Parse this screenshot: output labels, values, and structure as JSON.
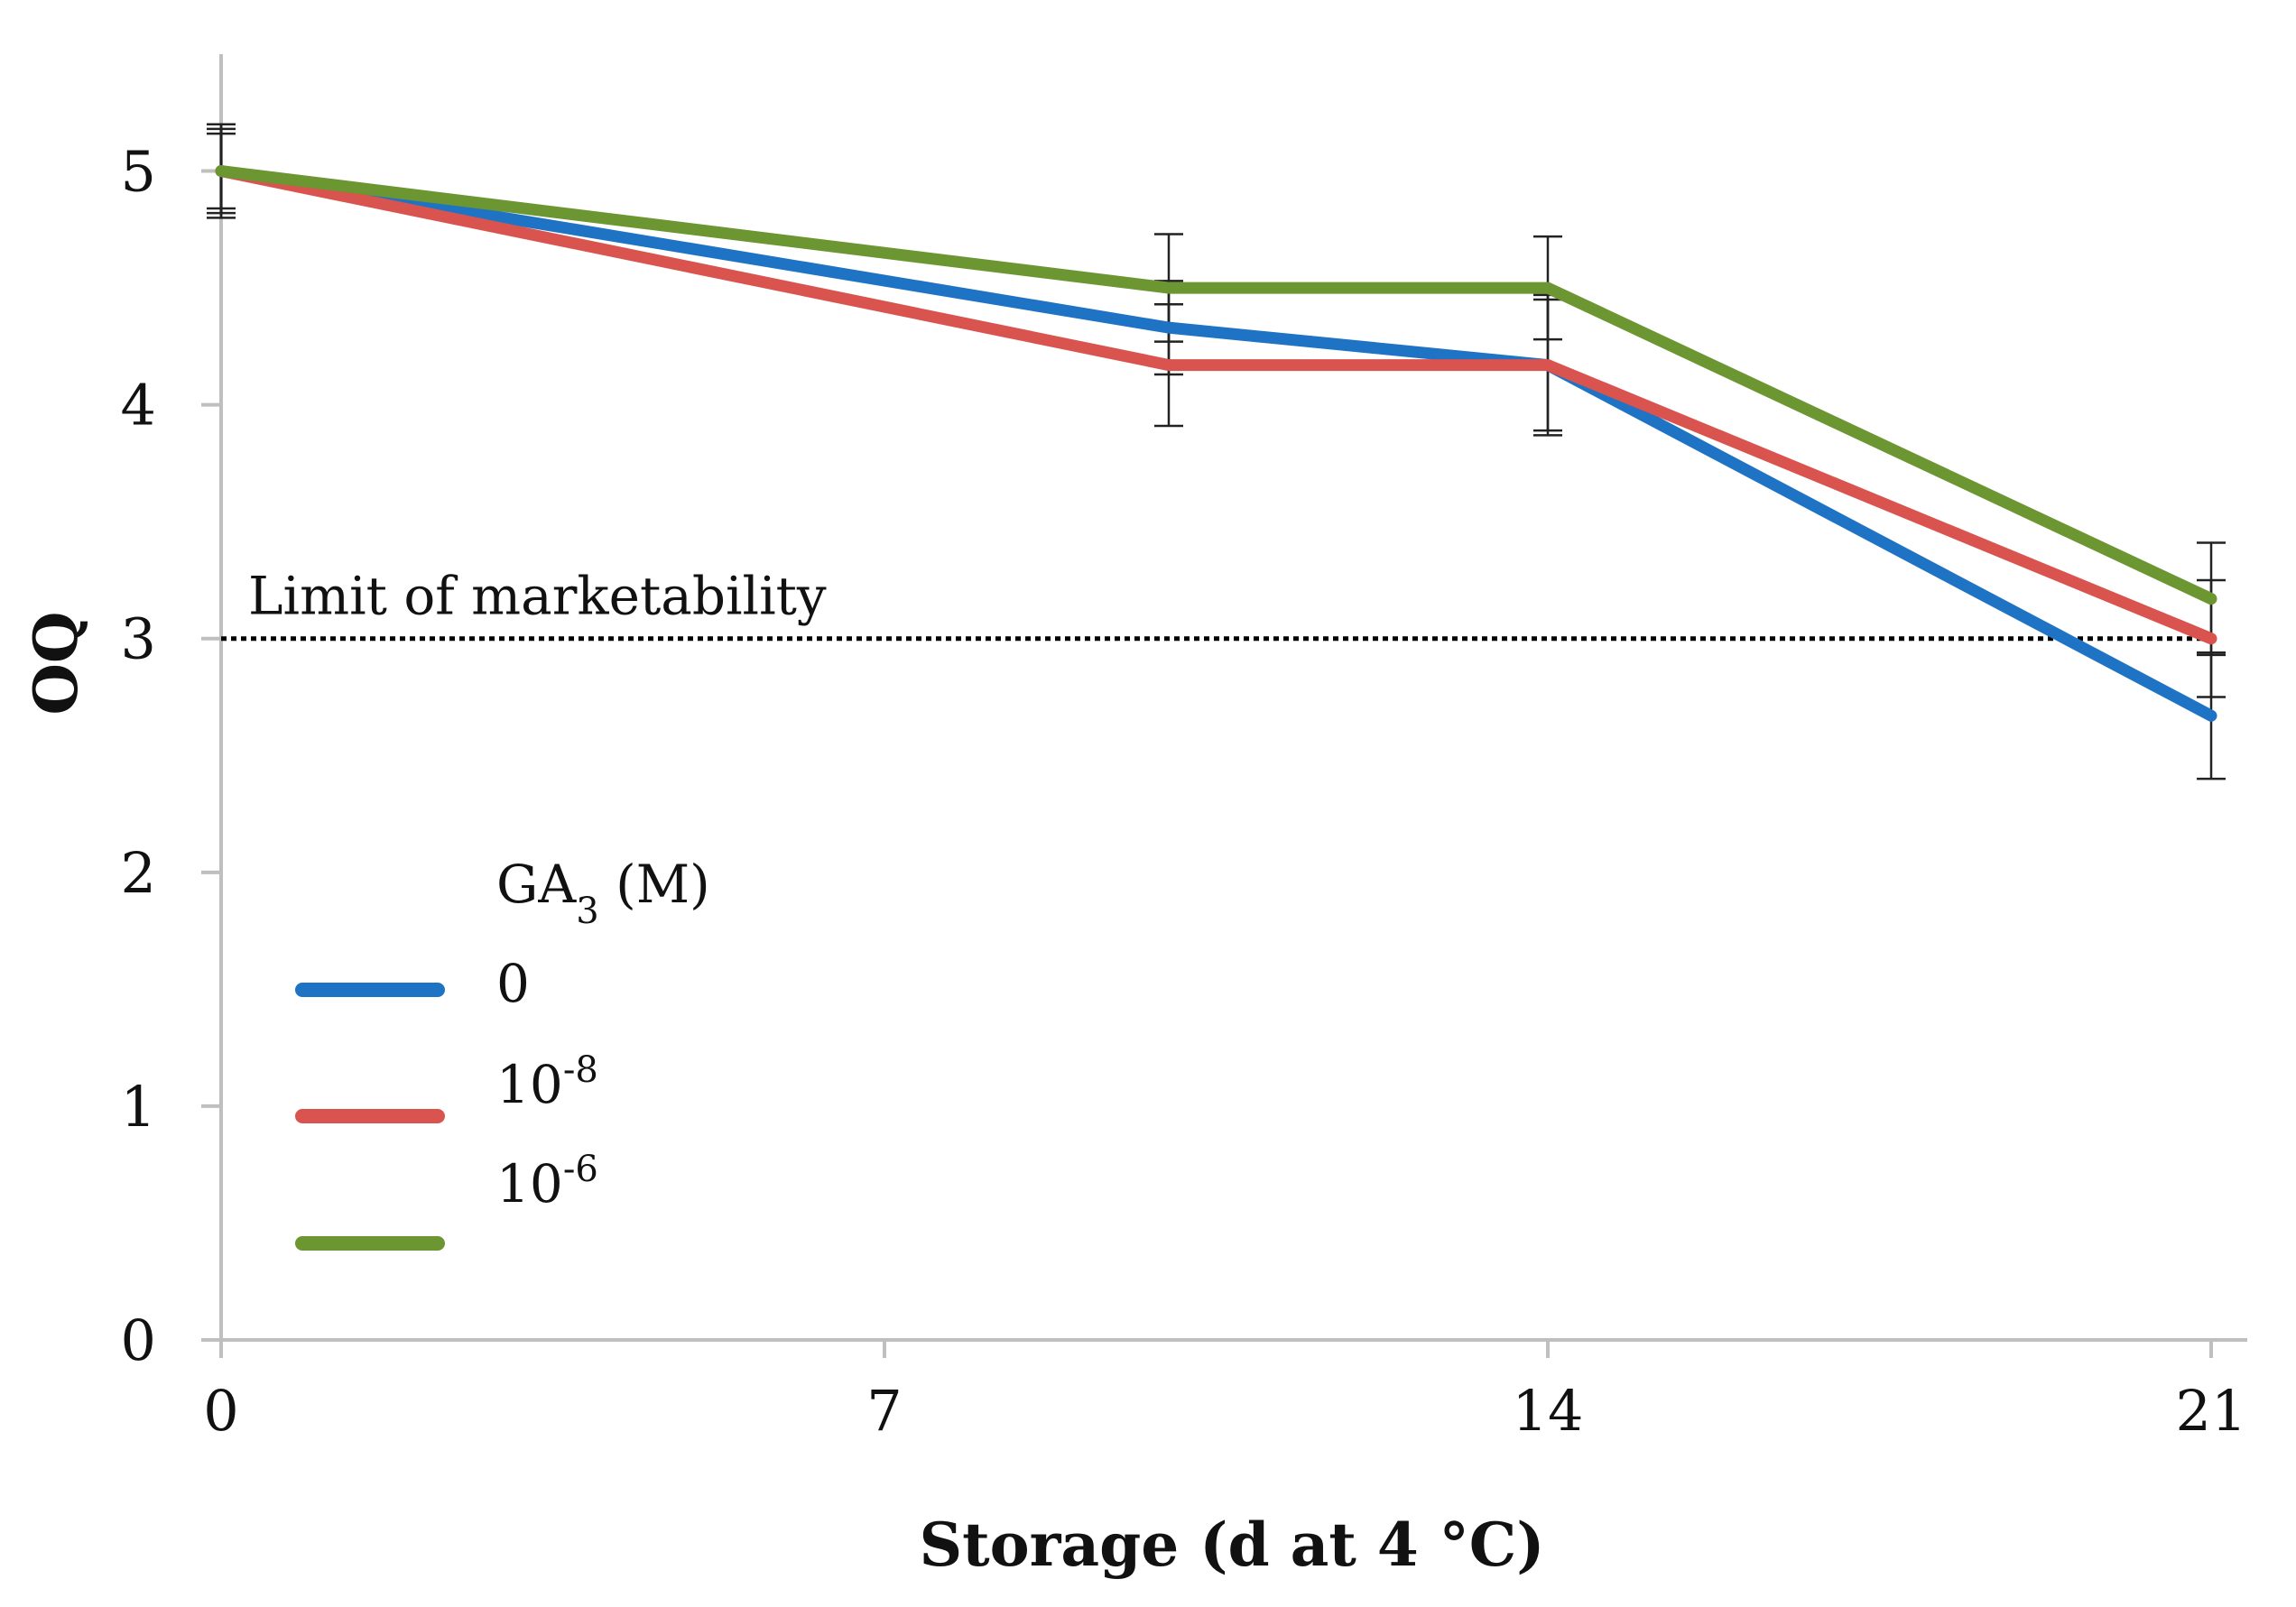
{
  "chart_data": {
    "type": "line",
    "xlabel": "Storage (d at 4 °C)",
    "ylabel": "OQ",
    "xlim": [
      0,
      21
    ],
    "ylim": [
      0,
      5.5
    ],
    "xticks": [
      "0",
      "7",
      "14",
      "21"
    ],
    "xtick_values": [
      0,
      7,
      14,
      21
    ],
    "yticks": [
      "0",
      "1",
      "2",
      "3",
      "4",
      "5"
    ],
    "ytick_values": [
      0,
      1,
      2,
      3,
      4,
      5
    ],
    "x": [
      0,
      10,
      14,
      21
    ],
    "series": [
      {
        "name": "0",
        "color": "#1F73C4",
        "values": [
          5.0,
          4.33,
          4.17,
          2.67
        ],
        "errors": [
          0.18,
          0.2,
          0.28,
          0.27
        ]
      },
      {
        "name": "10-8",
        "name_base": "10",
        "name_sup": "-8",
        "color": "#D9534F",
        "values": [
          5.0,
          4.17,
          4.17,
          3.0
        ],
        "errors": [
          0.16,
          0.26,
          0.3,
          0.25
        ]
      },
      {
        "name": "10-6",
        "name_base": "10",
        "name_sup": "-6",
        "color": "#6B9631",
        "values": [
          5.0,
          4.5,
          4.5,
          3.17
        ],
        "errors": [
          0.2,
          0.23,
          0.22,
          0.24
        ]
      }
    ],
    "legend": {
      "title_base": "GA",
      "title_sub": "3",
      "title_rest": " (M)",
      "placement": "lower-left"
    },
    "reference_line": {
      "y": 3,
      "label": "Limit of marketability",
      "style": "dotted"
    },
    "grid": false
  }
}
